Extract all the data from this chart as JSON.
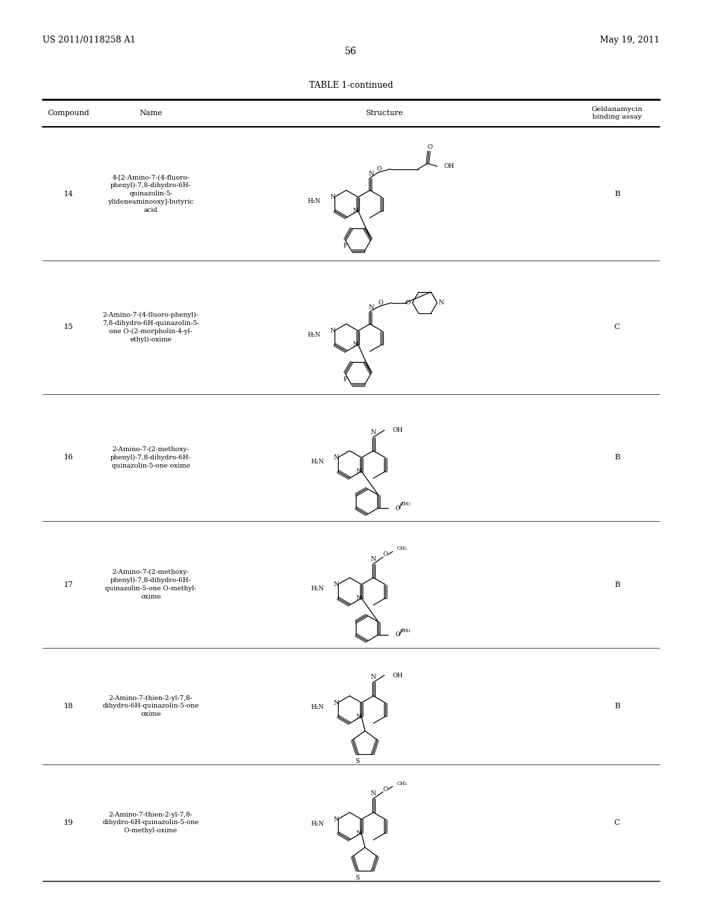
{
  "page_number": "56",
  "patent_number": "US 2011/0118258 A1",
  "patent_date": "May 19, 2011",
  "table_title": "TABLE 1-continued",
  "col_headers": [
    "Compound",
    "Name",
    "Structure",
    "Geldanamycin\nbinding assay"
  ],
  "compounds": [
    {
      "number": "14",
      "name": "4-[2-Amino-7-(4-fluoro-\nphenyl)-7,8-dihydro-6H-\nquinazolin-5-\nylideneaminooxy]-butyric\nacid",
      "binding": "B"
    },
    {
      "number": "15",
      "name": "2-Amino-7-(4-fluoro-phenyl)-\n7,8-dihydro-6H-quinazolin-5-\none O-(2-morpholin-4-yl-\nethyl)-oxime",
      "binding": "C"
    },
    {
      "number": "16",
      "name": "2-Amino-7-(2-methoxy-\nphenyl)-7,8-dihydro-6H-\nquinazolin-5-one oxime",
      "binding": "B"
    },
    {
      "number": "17",
      "name": "2-Amino-7-(2-methoxy-\nphenyl)-7,8-dihydro-6H-\nquinazolin-5-one O-methyl-\noxime",
      "binding": "B"
    },
    {
      "number": "18",
      "name": "2-Amino-7-thien-2-yl-7,8-\ndihydro-6H-quinazolin-5-one\noxime",
      "binding": "B"
    },
    {
      "number": "19",
      "name": "2-Amino-7-thien-2-yl-7,8-\ndihydro-6H-quinazolin-5-one\nO-methyl-oxime",
      "binding": "C"
    }
  ],
  "bg_color": "#ffffff",
  "text_color": "#000000",
  "line_color": "#000000",
  "font_size_header": 8.5,
  "font_size_body": 7.5,
  "font_size_page": 9
}
